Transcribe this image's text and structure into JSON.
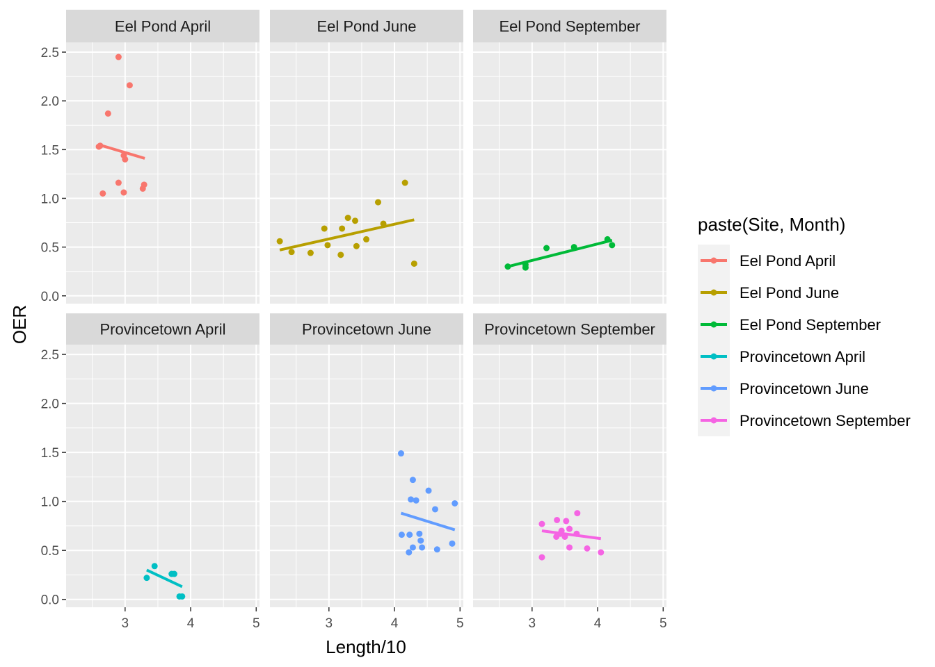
{
  "chart_data": {
    "type": "scatter",
    "xlabel": "Length/10",
    "ylabel": "OER",
    "xlim": [
      2.1,
      5.05
    ],
    "ylim": [
      -0.08,
      2.6
    ],
    "xticks": [
      3,
      4,
      5
    ],
    "yticks": [
      0.0,
      0.5,
      1.0,
      1.5,
      2.0,
      2.5
    ],
    "xtick_labels": [
      "3",
      "4",
      "5"
    ],
    "ytick_labels": [
      "0.0",
      "0.5",
      "1.0",
      "1.5",
      "2.0",
      "2.5"
    ],
    "grid": true,
    "legend": {
      "title": "paste(Site, Month)",
      "position": "right"
    },
    "panels": [
      {
        "name": "Eel Pond April",
        "color": "#F8766D",
        "points": [
          [
            2.9,
            2.45
          ],
          [
            3.07,
            2.16
          ],
          [
            2.74,
            1.87
          ],
          [
            2.62,
            1.54
          ],
          [
            2.6,
            1.53
          ],
          [
            2.98,
            1.44
          ],
          [
            3.0,
            1.4
          ],
          [
            2.9,
            1.16
          ],
          [
            3.29,
            1.14
          ],
          [
            3.27,
            1.1
          ],
          [
            2.66,
            1.05
          ],
          [
            2.98,
            1.06
          ]
        ],
        "fit": [
          [
            2.6,
            1.55
          ],
          [
            3.3,
            1.41
          ]
        ]
      },
      {
        "name": "Eel Pond June",
        "color": "#B79F00",
        "points": [
          [
            2.25,
            0.56
          ],
          [
            2.43,
            0.45
          ],
          [
            2.72,
            0.44
          ],
          [
            2.93,
            0.69
          ],
          [
            2.98,
            0.52
          ],
          [
            3.18,
            0.42
          ],
          [
            3.2,
            0.69
          ],
          [
            3.29,
            0.8
          ],
          [
            3.4,
            0.77
          ],
          [
            3.42,
            0.51
          ],
          [
            3.57,
            0.58
          ],
          [
            3.75,
            0.96
          ],
          [
            3.83,
            0.74
          ],
          [
            4.16,
            1.16
          ],
          [
            4.3,
            0.33
          ]
        ],
        "fit": [
          [
            2.25,
            0.47
          ],
          [
            4.3,
            0.78
          ]
        ]
      },
      {
        "name": "Eel Pond September",
        "color": "#00BA38",
        "points": [
          [
            2.63,
            0.3
          ],
          [
            2.9,
            0.29
          ],
          [
            2.9,
            0.32
          ],
          [
            3.22,
            0.49
          ],
          [
            3.64,
            0.5
          ],
          [
            4.15,
            0.58
          ],
          [
            4.22,
            0.52
          ]
        ],
        "fit": [
          [
            2.63,
            0.3
          ],
          [
            4.22,
            0.57
          ]
        ]
      },
      {
        "name": "Provincetown April",
        "color": "#00BFC4",
        "points": [
          [
            3.33,
            0.22
          ],
          [
            3.45,
            0.34
          ],
          [
            3.71,
            0.26
          ],
          [
            3.75,
            0.26
          ],
          [
            3.83,
            0.03
          ],
          [
            3.87,
            0.03
          ]
        ],
        "fit": [
          [
            3.33,
            0.3
          ],
          [
            3.87,
            0.13
          ]
        ]
      },
      {
        "name": "Provincetown June",
        "color": "#619CFF",
        "points": [
          [
            4.1,
            1.49
          ],
          [
            4.28,
            1.22
          ],
          [
            4.25,
            1.02
          ],
          [
            4.33,
            1.01
          ],
          [
            4.52,
            1.11
          ],
          [
            4.62,
            0.92
          ],
          [
            4.92,
            0.98
          ],
          [
            4.11,
            0.66
          ],
          [
            4.23,
            0.66
          ],
          [
            4.38,
            0.67
          ],
          [
            4.28,
            0.53
          ],
          [
            4.22,
            0.48
          ],
          [
            4.42,
            0.53
          ],
          [
            4.65,
            0.51
          ],
          [
            4.88,
            0.57
          ],
          [
            4.4,
            0.6
          ]
        ],
        "fit": [
          [
            4.1,
            0.88
          ],
          [
            4.92,
            0.71
          ]
        ]
      },
      {
        "name": "Provincetown September",
        "color": "#F564E3",
        "points": [
          [
            3.15,
            0.77
          ],
          [
            3.15,
            0.43
          ],
          [
            3.38,
            0.81
          ],
          [
            3.52,
            0.8
          ],
          [
            3.69,
            0.88
          ],
          [
            3.37,
            0.64
          ],
          [
            3.45,
            0.7
          ],
          [
            3.43,
            0.67
          ],
          [
            3.5,
            0.64
          ],
          [
            3.57,
            0.72
          ],
          [
            3.57,
            0.53
          ],
          [
            3.68,
            0.67
          ],
          [
            3.84,
            0.52
          ],
          [
            4.05,
            0.48
          ]
        ],
        "fit": [
          [
            3.15,
            0.7
          ],
          [
            4.05,
            0.62
          ]
        ]
      }
    ]
  }
}
